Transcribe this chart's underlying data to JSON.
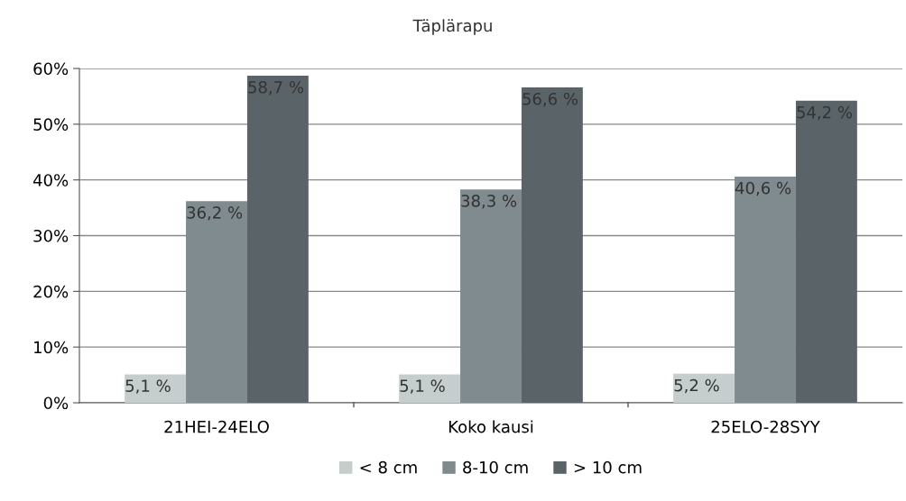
{
  "chart_data": {
    "type": "bar",
    "title": "Täplärapu",
    "categories": [
      "21HEI-24ELO",
      "Koko kausi",
      "25ELO-28SYY"
    ],
    "series": [
      {
        "name": "< 8 cm",
        "color": "#c5cdcd",
        "values": [
          5.1,
          5.1,
          5.2
        ],
        "value_labels": [
          "5,1 %",
          "5,1 %",
          "5,2 %"
        ]
      },
      {
        "name": "8-10 cm",
        "color": "#7f8b8f",
        "values": [
          36.2,
          38.3,
          40.6
        ],
        "value_labels": [
          "36,2 %",
          "38,3 %",
          "40,6 %"
        ]
      },
      {
        "name": "> 10 cm",
        "color": "#5a6468",
        "values": [
          58.7,
          56.6,
          54.2
        ],
        "value_labels": [
          "58,7 %",
          "56,6 %",
          "54,2 %"
        ]
      }
    ],
    "ylim": [
      0,
      60
    ],
    "yticks": [
      {
        "value": 0,
        "label": "0%"
      },
      {
        "value": 10,
        "label": "10%"
      },
      {
        "value": 20,
        "label": "20%"
      },
      {
        "value": 30,
        "label": "30%"
      },
      {
        "value": 40,
        "label": "40%"
      },
      {
        "value": 50,
        "label": "50%"
      },
      {
        "value": 60,
        "label": "60%"
      }
    ],
    "grid": "y",
    "legend": "bottom"
  }
}
